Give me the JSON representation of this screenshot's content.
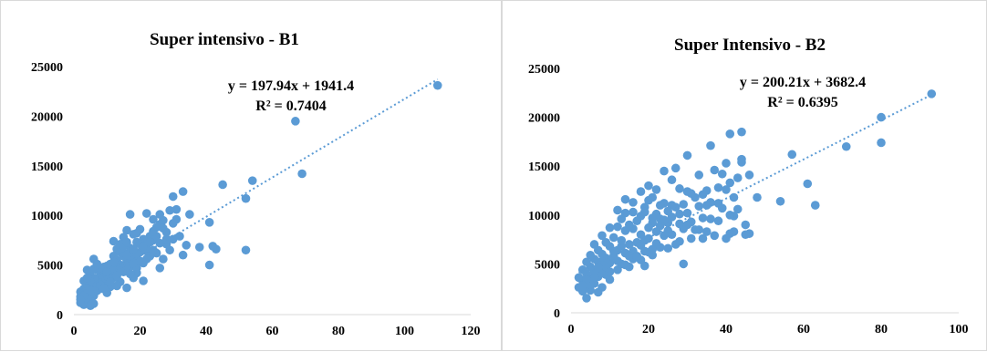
{
  "chart_data": [
    {
      "type": "scatter",
      "title": "Super intensivo - B1",
      "xlim": [
        0,
        120
      ],
      "ylim": [
        0,
        25000
      ],
      "x_ticks": [
        "0",
        "20",
        "40",
        "60",
        "80",
        "100",
        "120"
      ],
      "y_ticks": [
        "0",
        "5000",
        "10000",
        "15000",
        "20000",
        "25000"
      ],
      "color": "#5b9bd5",
      "trendline": {
        "slope": 197.94,
        "intercept": 1941.4,
        "x_range": [
          2,
          110
        ],
        "style": "dotted"
      },
      "equation": "y = 197.94x + 1941.4",
      "r2": "R² = 0.7404",
      "points": [
        [
          110,
          23100
        ],
        [
          67,
          19500
        ],
        [
          69,
          14200
        ],
        [
          54,
          13500
        ],
        [
          52,
          11700
        ],
        [
          52,
          6500
        ],
        [
          45,
          13100
        ],
        [
          43,
          6600
        ],
        [
          42,
          6900
        ],
        [
          41,
          9300
        ],
        [
          41,
          5000
        ],
        [
          38,
          6800
        ],
        [
          35,
          10100
        ],
        [
          33,
          12400
        ],
        [
          34,
          7000
        ],
        [
          33,
          6000
        ],
        [
          32,
          7900
        ],
        [
          31,
          9600
        ],
        [
          30,
          11900
        ],
        [
          31,
          10600
        ],
        [
          30,
          9200
        ],
        [
          29,
          10500
        ],
        [
          30,
          7600
        ],
        [
          29,
          6500
        ],
        [
          28,
          7100
        ],
        [
          28,
          8300
        ],
        [
          27,
          9500
        ],
        [
          26,
          10100
        ],
        [
          27,
          5600
        ],
        [
          26,
          9100
        ],
        [
          26,
          4700
        ],
        [
          25,
          8800
        ],
        [
          25,
          6200
        ],
        [
          24,
          7500
        ],
        [
          24,
          9600
        ],
        [
          23,
          7900
        ],
        [
          23,
          5900
        ],
        [
          22,
          10200
        ],
        [
          22,
          6400
        ],
        [
          21,
          7600
        ],
        [
          21,
          5200
        ],
        [
          21,
          3400
        ],
        [
          20,
          8600
        ],
        [
          20,
          6300
        ],
        [
          19,
          4200
        ],
        [
          19,
          7300
        ],
        [
          18,
          5800
        ],
        [
          18,
          8100
        ],
        [
          18,
          3700
        ],
        [
          17,
          10100
        ],
        [
          17,
          6700
        ],
        [
          17,
          4800
        ],
        [
          16,
          8500
        ],
        [
          16,
          5400
        ],
        [
          16,
          2700
        ],
        [
          15,
          7800
        ],
        [
          15,
          6200
        ],
        [
          15,
          4300
        ],
        [
          14,
          7100
        ],
        [
          14,
          5000
        ],
        [
          14,
          3300
        ],
        [
          13,
          6600
        ],
        [
          13,
          4700
        ],
        [
          13,
          2900
        ],
        [
          12,
          5900
        ],
        [
          12,
          3700
        ],
        [
          12,
          7400
        ],
        [
          11,
          5100
        ],
        [
          11,
          4000
        ],
        [
          11,
          2800
        ],
        [
          10,
          4900
        ],
        [
          10,
          3500
        ],
        [
          10,
          2200
        ],
        [
          9,
          4500
        ],
        [
          9,
          3100
        ],
        [
          9,
          4800
        ],
        [
          8,
          3900
        ],
        [
          8,
          2600
        ],
        [
          8,
          4600
        ],
        [
          7,
          3400
        ],
        [
          7,
          2400
        ],
        [
          7,
          4500
        ],
        [
          6,
          3700
        ],
        [
          6,
          2800
        ],
        [
          6,
          5600
        ],
        [
          6,
          1900
        ],
        [
          5,
          4300
        ],
        [
          5,
          2500
        ],
        [
          5,
          3300
        ],
        [
          5,
          1400
        ],
        [
          4,
          3100
        ],
        [
          4,
          2000
        ],
        [
          4,
          4500
        ],
        [
          4,
          1300
        ],
        [
          3,
          2600
        ],
        [
          3,
          1600
        ],
        [
          3,
          2200
        ],
        [
          3,
          1000
        ],
        [
          2,
          1800
        ],
        [
          2,
          1200
        ],
        [
          2,
          2300
        ],
        [
          3,
          3400
        ],
        [
          4,
          3700
        ],
        [
          6,
          4600
        ],
        [
          7,
          5100
        ],
        [
          9,
          3700
        ],
        [
          11,
          4600
        ],
        [
          13,
          5500
        ],
        [
          14,
          6300
        ],
        [
          15,
          5900
        ],
        [
          17,
          5900
        ],
        [
          19,
          6100
        ],
        [
          20,
          7100
        ],
        [
          22,
          6700
        ],
        [
          24,
          6500
        ],
        [
          19,
          8200
        ],
        [
          15,
          6900
        ],
        [
          16,
          7300
        ],
        [
          18,
          6600
        ],
        [
          12,
          4500
        ],
        [
          10,
          3900
        ],
        [
          8,
          3200
        ],
        [
          7,
          2900
        ],
        [
          6,
          2400
        ],
        [
          5,
          2100
        ],
        [
          4,
          1700
        ],
        [
          3,
          1900
        ],
        [
          2,
          1500
        ],
        [
          5,
          900
        ],
        [
          6,
          1100
        ],
        [
          4,
          2600
        ],
        [
          8,
          3000
        ],
        [
          9,
          2600
        ],
        [
          11,
          3300
        ],
        [
          13,
          3900
        ],
        [
          14,
          4600
        ],
        [
          16,
          4900
        ],
        [
          17,
          4100
        ],
        [
          19,
          4700
        ],
        [
          20,
          5400
        ],
        [
          21,
          6900
        ],
        [
          23,
          7300
        ],
        [
          25,
          7900
        ],
        [
          27,
          8700
        ],
        [
          28,
          7600
        ],
        [
          26,
          7200
        ],
        [
          24,
          8400
        ],
        [
          22,
          5600
        ],
        [
          18,
          5200
        ],
        [
          16,
          6000
        ],
        [
          12,
          5300
        ],
        [
          10,
          4300
        ]
      ]
    },
    {
      "type": "scatter",
      "title": "Super Intensivo - B2",
      "xlim": [
        0,
        100
      ],
      "ylim": [
        0,
        25000
      ],
      "x_ticks": [
        "0",
        "20",
        "40",
        "60",
        "80",
        "100"
      ],
      "y_ticks": [
        "0",
        "5000",
        "10000",
        "15000",
        "20000",
        "25000"
      ],
      "color": "#5b9bd5",
      "trendline": {
        "slope": 200.21,
        "intercept": 3682.4,
        "x_range": [
          2,
          93
        ],
        "style": "dotted"
      },
      "equation": "y = 200.21x + 3682.4",
      "r2": "R² = 0.6395",
      "points": [
        [
          93,
          22400
        ],
        [
          80,
          20000
        ],
        [
          80,
          17400
        ],
        [
          71,
          17000
        ],
        [
          63,
          11000
        ],
        [
          61,
          13200
        ],
        [
          57,
          16200
        ],
        [
          54,
          11400
        ],
        [
          48,
          11800
        ],
        [
          46,
          14100
        ],
        [
          45,
          9000
        ],
        [
          46,
          8100
        ],
        [
          44,
          15700
        ],
        [
          44,
          15400
        ],
        [
          45,
          8000
        ],
        [
          43,
          13800
        ],
        [
          43,
          10600
        ],
        [
          42,
          9900
        ],
        [
          44,
          18500
        ],
        [
          41,
          18300
        ],
        [
          42,
          11800
        ],
        [
          41,
          13300
        ],
        [
          42,
          8300
        ],
        [
          40,
          15300
        ],
        [
          40,
          12600
        ],
        [
          41,
          8100
        ],
        [
          39,
          14200
        ],
        [
          38,
          11200
        ],
        [
          38,
          9400
        ],
        [
          37,
          14600
        ],
        [
          36,
          17100
        ],
        [
          36,
          9600
        ],
        [
          35,
          12500
        ],
        [
          34,
          9700
        ],
        [
          34,
          7600
        ],
        [
          33,
          14100
        ],
        [
          33,
          8500
        ],
        [
          32,
          11800
        ],
        [
          31,
          12200
        ],
        [
          31,
          9300
        ],
        [
          30,
          16100
        ],
        [
          30,
          12400
        ],
        [
          30,
          10200
        ],
        [
          29,
          8600
        ],
        [
          29,
          5000
        ],
        [
          28,
          12700
        ],
        [
          28,
          9100
        ],
        [
          28,
          7300
        ],
        [
          27,
          14800
        ],
        [
          27,
          10800
        ],
        [
          26,
          13600
        ],
        [
          26,
          11000
        ],
        [
          25,
          8400
        ],
        [
          25,
          6600
        ],
        [
          24,
          14500
        ],
        [
          24,
          11200
        ],
        [
          24,
          7900
        ],
        [
          23,
          9600
        ],
        [
          23,
          6700
        ],
        [
          22,
          12600
        ],
        [
          22,
          10100
        ],
        [
          22,
          8300
        ],
        [
          21,
          11800
        ],
        [
          21,
          9200
        ],
        [
          21,
          5900
        ],
        [
          20,
          13000
        ],
        [
          20,
          11500
        ],
        [
          20,
          8700
        ],
        [
          20,
          6200
        ],
        [
          19,
          10800
        ],
        [
          19,
          7400
        ],
        [
          19,
          4800
        ],
        [
          18,
          9900
        ],
        [
          18,
          8000
        ],
        [
          18,
          5400
        ],
        [
          17,
          9400
        ],
        [
          17,
          7200
        ],
        [
          16,
          10300
        ],
        [
          16,
          8600
        ],
        [
          16,
          6300
        ],
        [
          15,
          9000
        ],
        [
          15,
          7000
        ],
        [
          15,
          4700
        ],
        [
          14,
          11600
        ],
        [
          14,
          8400
        ],
        [
          14,
          6100
        ],
        [
          13,
          9600
        ],
        [
          13,
          6800
        ],
        [
          13,
          5000
        ],
        [
          12,
          8800
        ],
        [
          12,
          6400
        ],
        [
          12,
          4400
        ],
        [
          11,
          7700
        ],
        [
          11,
          5800
        ],
        [
          10,
          6800
        ],
        [
          10,
          5100
        ],
        [
          10,
          3400
        ],
        [
          9,
          7200
        ],
        [
          9,
          5600
        ],
        [
          9,
          3900
        ],
        [
          8,
          7900
        ],
        [
          8,
          6000
        ],
        [
          8,
          4300
        ],
        [
          8,
          2600
        ],
        [
          7,
          6400
        ],
        [
          7,
          5200
        ],
        [
          7,
          3700
        ],
        [
          7,
          2100
        ],
        [
          6,
          7000
        ],
        [
          6,
          5500
        ],
        [
          6,
          4200
        ],
        [
          6,
          3000
        ],
        [
          5,
          5900
        ],
        [
          5,
          4700
        ],
        [
          5,
          3500
        ],
        [
          5,
          2300
        ],
        [
          4,
          5200
        ],
        [
          4,
          4000
        ],
        [
          4,
          2800
        ],
        [
          4,
          1500
        ],
        [
          3,
          4400
        ],
        [
          3,
          3300
        ],
        [
          3,
          2200
        ],
        [
          2,
          3600
        ],
        [
          2,
          2600
        ],
        [
          10,
          8700
        ],
        [
          12,
          10500
        ],
        [
          14,
          10200
        ],
        [
          16,
          11300
        ],
        [
          18,
          12400
        ],
        [
          19,
          10300
        ],
        [
          21,
          9700
        ],
        [
          23,
          11000
        ],
        [
          25,
          9200
        ],
        [
          26,
          8000
        ],
        [
          27,
          7000
        ],
        [
          28,
          10100
        ],
        [
          29,
          11100
        ],
        [
          30,
          9000
        ],
        [
          31,
          7600
        ],
        [
          32,
          8500
        ],
        [
          33,
          10900
        ],
        [
          34,
          12100
        ],
        [
          35,
          8300
        ],
        [
          36,
          11300
        ],
        [
          37,
          7900
        ],
        [
          38,
          12800
        ],
        [
          39,
          10700
        ],
        [
          40,
          7600
        ],
        [
          41,
          10000
        ],
        [
          35,
          11000
        ],
        [
          24,
          9500
        ],
        [
          22,
          7100
        ],
        [
          20,
          7600
        ],
        [
          18,
          6900
        ],
        [
          16,
          5500
        ],
        [
          15,
          5800
        ],
        [
          13,
          7400
        ],
        [
          11,
          6300
        ],
        [
          9,
          4700
        ],
        [
          8,
          5200
        ],
        [
          6,
          3600
        ],
        [
          5,
          2900
        ],
        [
          4,
          3400
        ],
        [
          3,
          2800
        ],
        [
          7,
          4600
        ],
        [
          10,
          4200
        ],
        [
          12,
          5300
        ],
        [
          14,
          4900
        ],
        [
          17,
          5800
        ],
        [
          19,
          6300
        ],
        [
          21,
          6500
        ],
        [
          23,
          8900
        ],
        [
          25,
          10400
        ],
        [
          26,
          9800
        ]
      ]
    }
  ]
}
